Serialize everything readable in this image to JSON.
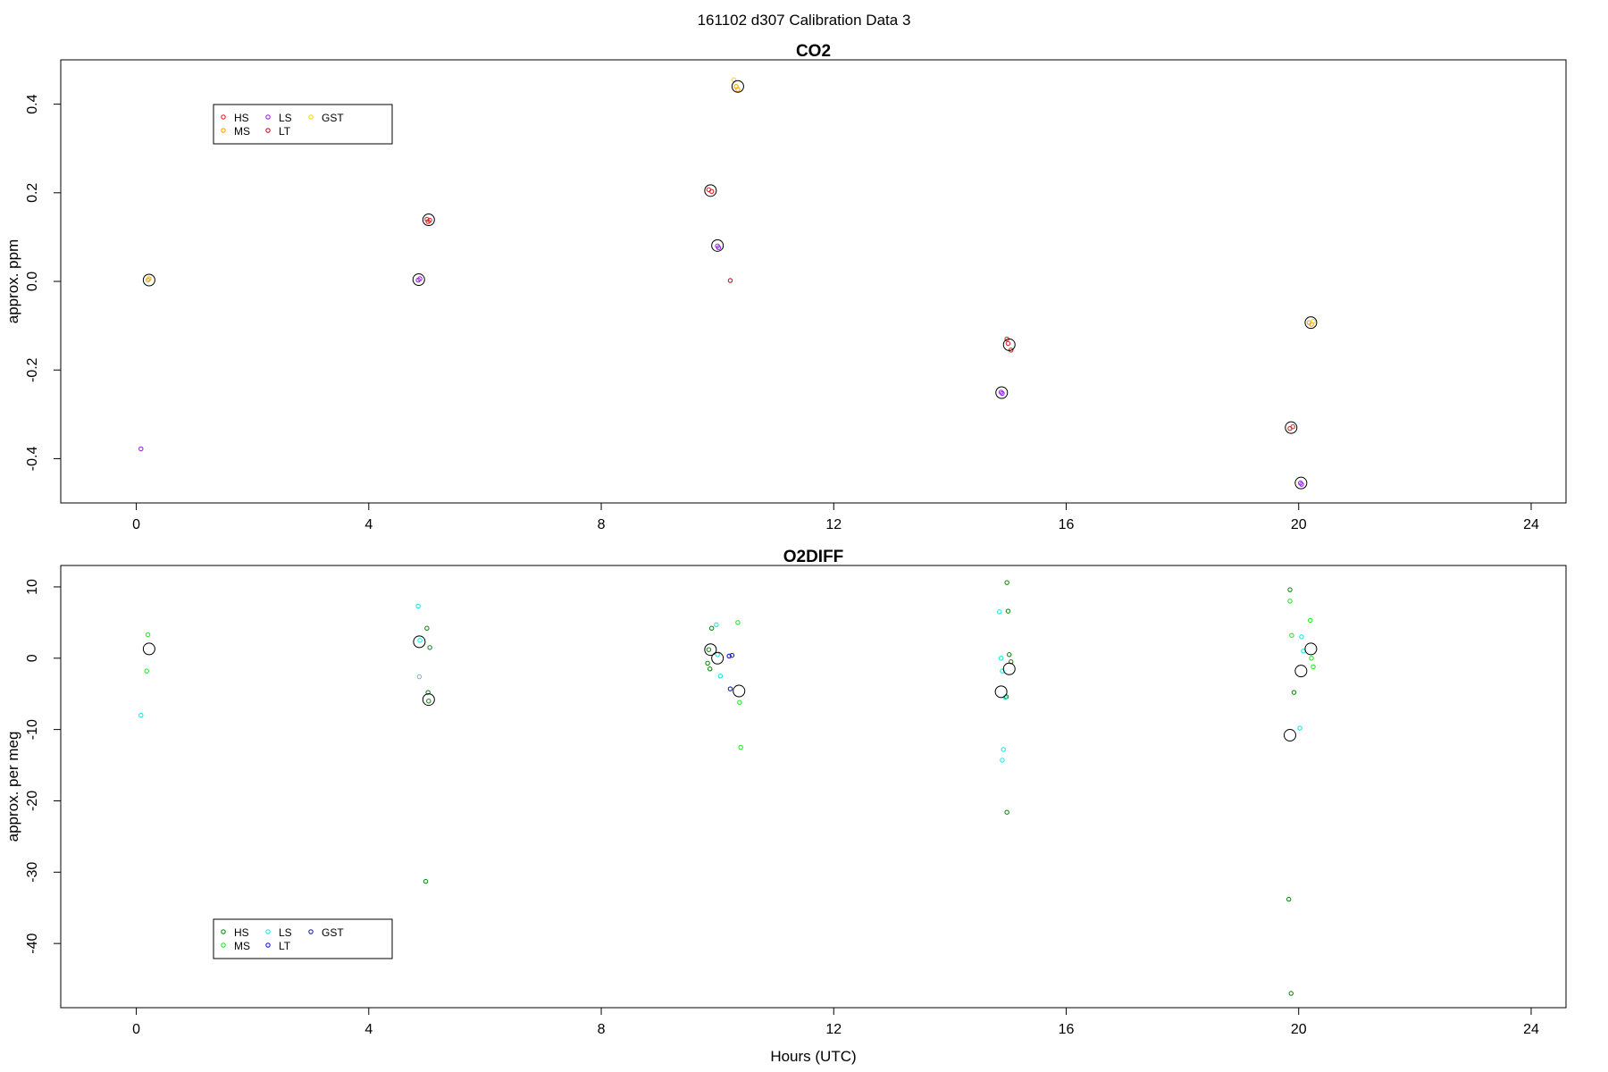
{
  "figure_title": "161102   d307   Calibration Data 3",
  "chart_data": [
    {
      "type": "scatter",
      "title": "CO2",
      "xlabel": "",
      "ylabel": "approx. ppm",
      "xlim": [
        -1.3,
        24.6
      ],
      "ylim": [
        -0.5,
        0.5
      ],
      "xticks": [
        "0",
        "4",
        "8",
        "12",
        "16",
        "20",
        "24"
      ],
      "xtick_values": [
        0,
        4,
        8,
        12,
        16,
        20,
        24
      ],
      "yticks": [
        "-0.4",
        "-0.2",
        "0.0",
        "0.2",
        "0.4"
      ],
      "ytick_values": [
        -0.4,
        -0.2,
        0.0,
        0.2,
        0.4
      ],
      "legend": {
        "position": "top-left",
        "entries": [
          {
            "label": "HS",
            "color": "#e8242a"
          },
          {
            "label": "MS",
            "color": "#ffa500"
          },
          {
            "label": "LS",
            "color": "#a020f0"
          },
          {
            "label": "LT",
            "color": "#c0182a"
          },
          {
            "label": "GST",
            "color": "#ffd700"
          }
        ]
      },
      "series": [
        {
          "name": "HS",
          "color": "#e8242a",
          "points": [
            [
              5.0,
              0.14
            ],
            [
              5.02,
              0.135
            ],
            [
              5.05,
              0.138
            ],
            [
              9.85,
              0.207
            ],
            [
              9.9,
              0.203
            ],
            [
              15.0,
              -0.14
            ],
            [
              15.05,
              -0.155
            ],
            [
              14.98,
              -0.13
            ],
            [
              19.85,
              -0.332
            ],
            [
              19.9,
              -0.328
            ]
          ]
        },
        {
          "name": "MS",
          "color": "#ffa500",
          "points": [
            [
              0.2,
              0.003
            ],
            [
              0.22,
              0.006
            ],
            [
              10.32,
              0.44
            ],
            [
              10.35,
              0.433
            ],
            [
              20.18,
              -0.093
            ],
            [
              20.22,
              -0.097
            ]
          ]
        },
        {
          "name": "LS",
          "color": "#a020f0",
          "points": [
            [
              0.08,
              -0.378
            ],
            [
              4.85,
              0.003
            ],
            [
              4.88,
              0.006
            ],
            [
              10.0,
              0.08
            ],
            [
              10.02,
              0.076
            ],
            [
              14.88,
              -0.25
            ],
            [
              14.9,
              -0.253
            ],
            [
              20.03,
              -0.455
            ],
            [
              20.05,
              -0.458
            ]
          ]
        },
        {
          "name": "LT",
          "color": "#c0182a",
          "points": [
            [
              10.22,
              0.002
            ]
          ]
        },
        {
          "name": "GST",
          "color": "#ffd700",
          "points": [
            [
              10.28,
              0.455
            ],
            [
              20.25,
              -0.09
            ]
          ]
        }
      ],
      "means": [
        [
          0.22,
          0.003
        ],
        [
          4.86,
          0.004
        ],
        [
          5.03,
          0.139
        ],
        [
          9.88,
          0.205
        ],
        [
          10.0,
          0.081
        ],
        [
          10.35,
          0.44
        ],
        [
          14.89,
          -0.251
        ],
        [
          15.02,
          -0.143
        ],
        [
          19.87,
          -0.33
        ],
        [
          20.04,
          -0.455
        ],
        [
          20.21,
          -0.093
        ]
      ]
    },
    {
      "type": "scatter",
      "title": "O2DIFF",
      "xlabel": "Hours (UTC)",
      "ylabel": "approx. per meg",
      "xlim": [
        -1.3,
        24.6
      ],
      "ylim": [
        -49,
        13
      ],
      "xticks": [
        "0",
        "4",
        "8",
        "12",
        "16",
        "20",
        "24"
      ],
      "xtick_values": [
        0,
        4,
        8,
        12,
        16,
        20,
        24
      ],
      "yticks": [
        "-40",
        "-30",
        "-20",
        "-10",
        "0",
        "10"
      ],
      "ytick_values": [
        -40,
        -30,
        -20,
        -10,
        0,
        10
      ],
      "legend": {
        "position": "bottom-left",
        "entries": [
          {
            "label": "HS",
            "color": "#1a8a1a"
          },
          {
            "label": "MS",
            "color": "#2ee62e"
          },
          {
            "label": "LS",
            "color": "#22e6e6"
          },
          {
            "label": "LT",
            "color": "#1a1ae6"
          },
          {
            "label": "GST",
            "color": "#2222aa"
          }
        ]
      },
      "series": [
        {
          "name": "HS",
          "color": "#1a8a1a",
          "points": [
            [
              4.98,
              -31.3
            ],
            [
              5.0,
              4.2
            ],
            [
              5.02,
              -4.8
            ],
            [
              5.05,
              1.5
            ],
            [
              5.03,
              -6.0
            ],
            [
              9.85,
              1.2
            ],
            [
              9.87,
              -1.5
            ],
            [
              9.9,
              4.2
            ],
            [
              9.83,
              -0.7
            ],
            [
              14.98,
              10.6
            ],
            [
              15.0,
              6.6
            ],
            [
              15.02,
              0.5
            ],
            [
              15.05,
              -0.5
            ],
            [
              14.97,
              -5.4
            ],
            [
              14.98,
              -21.6
            ],
            [
              19.85,
              9.6
            ],
            [
              19.83,
              -33.8
            ],
            [
              19.87,
              -47.0
            ],
            [
              19.92,
              -4.8
            ]
          ]
        },
        {
          "name": "MS",
          "color": "#2ee62e",
          "points": [
            [
              0.2,
              3.3
            ],
            [
              0.18,
              -1.8
            ],
            [
              10.35,
              5.0
            ],
            [
              10.38,
              -6.2
            ],
            [
              10.4,
              -12.5
            ],
            [
              19.85,
              8.0
            ],
            [
              19.88,
              3.2
            ],
            [
              20.2,
              5.3
            ],
            [
              20.22,
              0.0
            ],
            [
              20.25,
              -1.2
            ]
          ]
        },
        {
          "name": "LS",
          "color": "#22e6e6",
          "points": [
            [
              0.08,
              -8.0
            ],
            [
              4.85,
              7.3
            ],
            [
              4.87,
              -2.6
            ],
            [
              4.88,
              2.5
            ],
            [
              9.98,
              4.7
            ],
            [
              10.0,
              0.5
            ],
            [
              10.05,
              -2.5
            ],
            [
              14.85,
              6.5
            ],
            [
              14.88,
              0.0
            ],
            [
              14.9,
              -1.8
            ],
            [
              14.92,
              -12.8
            ],
            [
              14.9,
              -14.3
            ],
            [
              14.95,
              -5.5
            ],
            [
              20.05,
              3.0
            ],
            [
              20.08,
              1.0
            ],
            [
              20.02,
              -9.8
            ]
          ]
        },
        {
          "name": "LT",
          "color": "#1a1ae6",
          "points": [
            [
              10.2,
              0.3
            ],
            [
              10.25,
              0.4
            ],
            [
              10.22,
              -4.3
            ]
          ]
        },
        {
          "name": "GST",
          "color": "#2222aa",
          "points": []
        }
      ],
      "means": [
        [
          0.22,
          1.3
        ],
        [
          4.87,
          2.3
        ],
        [
          5.03,
          -5.8
        ],
        [
          9.88,
          1.2
        ],
        [
          10.0,
          0.0
        ],
        [
          10.37,
          -4.6
        ],
        [
          14.88,
          -4.7
        ],
        [
          15.02,
          -1.5
        ],
        [
          19.85,
          -10.8
        ],
        [
          20.04,
          -1.8
        ],
        [
          20.21,
          1.3
        ]
      ]
    }
  ]
}
